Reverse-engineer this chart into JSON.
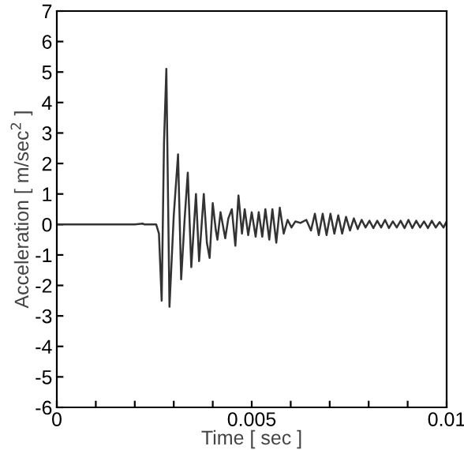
{
  "chart_data": {
    "type": "line",
    "xlabel": "Time [ sec ]",
    "ylabel": "Acceleration [ m/sec$^{2}$ ]",
    "x": [
      0,
      0.002,
      0.0022,
      0.00225,
      0.00255,
      0.00262,
      0.00269,
      0.00275,
      0.00281,
      0.00289,
      0.003,
      0.00311,
      0.00319,
      0.00328,
      0.00336,
      0.00345,
      0.00357,
      0.00365,
      0.00377,
      0.00385,
      0.00392,
      0.004,
      0.00408,
      0.00412,
      0.0042,
      0.00432,
      0.0044,
      0.00449,
      0.00458,
      0.00466,
      0.00475,
      0.00482,
      0.00491,
      0.005,
      0.0051,
      0.00518,
      0.00527,
      0.00535,
      0.00545,
      0.00553,
      0.00563,
      0.00572,
      0.00582,
      0.00592,
      0.00602,
      0.00612,
      0.00625,
      0.0064,
      0.00652,
      0.00662,
      0.00672,
      0.00682,
      0.00692,
      0.00702,
      0.00712,
      0.00722,
      0.00732,
      0.00742,
      0.00752,
      0.00762,
      0.00772,
      0.00782,
      0.00792,
      0.00802,
      0.00812,
      0.00822,
      0.00832,
      0.00842,
      0.00852,
      0.00862,
      0.00872,
      0.00882,
      0.00892,
      0.00902,
      0.00912,
      0.00922,
      0.00932,
      0.00942,
      0.00952,
      0.00962,
      0.00972,
      0.00982,
      0.00992,
      0.01
    ],
    "series": [
      {
        "color": "#333333",
        "values": [
          0,
          0,
          0.03,
          0,
          0,
          -0.3,
          -2.5,
          2.7,
          5.1,
          -2.7,
          0.3,
          2.3,
          -1.8,
          0.2,
          1.7,
          -1.4,
          1.0,
          -1.2,
          1.0,
          -0.6,
          -1.1,
          0.7,
          -0.2,
          -0.5,
          0.4,
          -0.45,
          0.2,
          0.5,
          -0.7,
          0.95,
          -0.3,
          0.5,
          -0.35,
          0.4,
          -0.4,
          0.4,
          -0.4,
          0.5,
          -0.5,
          0.5,
          -0.6,
          0.55,
          -0.3,
          0.15,
          -0.1,
          0.1,
          0.05,
          0.15,
          -0.2,
          0.35,
          -0.35,
          0.35,
          -0.35,
          0.35,
          -0.3,
          0.3,
          -0.3,
          0.25,
          -0.2,
          0.2,
          -0.15,
          0.15,
          -0.1,
          0.12,
          -0.12,
          0.12,
          -0.1,
          0.15,
          -0.12,
          0.1,
          -0.1,
          0.12,
          -0.12,
          0.15,
          -0.12,
          0.12,
          -0.1,
          0.1,
          -0.12,
          0.12,
          -0.1,
          0.08,
          -0.1,
          0.1
        ]
      }
    ],
    "xlim": [
      0,
      0.01
    ],
    "ylim": [
      -6,
      7
    ],
    "xticks": [
      0,
      {
        "value": 0.001,
        "label": null
      },
      {
        "value": 0.002,
        "label": null
      },
      {
        "value": 0.003,
        "label": null
      },
      {
        "value": 0.004,
        "label": null
      },
      0.005,
      {
        "value": 0.006,
        "label": null
      },
      {
        "value": 0.007,
        "label": null
      },
      {
        "value": 0.008,
        "label": null
      },
      {
        "value": 0.009,
        "label": null
      },
      0.01
    ],
    "yticks": [
      -6,
      -5,
      -4,
      -3,
      -2,
      -1,
      0,
      1,
      2,
      3,
      4,
      5,
      6,
      7
    ],
    "grid": false,
    "legend": false,
    "marker": "none",
    "line_style": "solid"
  }
}
